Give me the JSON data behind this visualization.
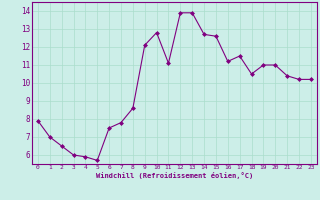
{
  "x": [
    0,
    1,
    2,
    3,
    4,
    5,
    6,
    7,
    8,
    9,
    10,
    11,
    12,
    13,
    14,
    15,
    16,
    17,
    18,
    19,
    20,
    21,
    22,
    23
  ],
  "y": [
    7.9,
    7.0,
    6.5,
    6.0,
    5.9,
    5.7,
    7.5,
    7.8,
    8.6,
    12.1,
    12.8,
    11.1,
    13.9,
    13.9,
    12.7,
    12.6,
    11.2,
    11.5,
    10.5,
    11.0,
    11.0,
    10.4,
    10.2,
    10.2
  ],
  "line_color": "#800080",
  "marker": "D",
  "marker_size": 2.0,
  "bg_color": "#cceee8",
  "grid_color": "#aaddcc",
  "xlabel": "Windchill (Refroidissement éolien,°C)",
  "xlim": [
    -0.5,
    23.5
  ],
  "ylim": [
    5.5,
    14.5
  ],
  "yticks": [
    6,
    7,
    8,
    9,
    10,
    11,
    12,
    13,
    14
  ],
  "xticks": [
    0,
    1,
    2,
    3,
    4,
    5,
    6,
    7,
    8,
    9,
    10,
    11,
    12,
    13,
    14,
    15,
    16,
    17,
    18,
    19,
    20,
    21,
    22,
    23
  ],
  "tick_color": "#800080",
  "label_color": "#800080",
  "axis_color": "#800080",
  "font_family": "monospace"
}
